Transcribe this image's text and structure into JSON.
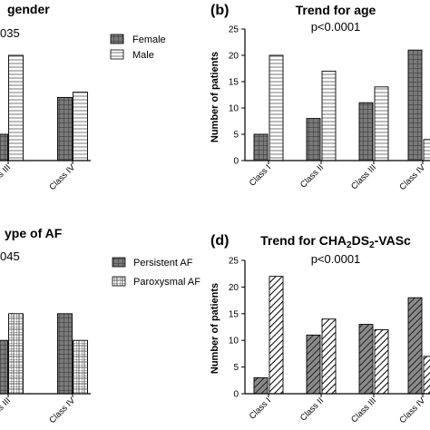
{
  "chart_data": [
    {
      "type": "bar",
      "panel_letter": "",
      "title": "gender",
      "pvalue": "035",
      "categories": [
        "lass III",
        "Class IV"
      ],
      "series": [
        {
          "name": "Female",
          "values": [
            5,
            12
          ],
          "pattern": "grid"
        },
        {
          "name": "Male",
          "values": [
            20,
            13
          ],
          "pattern": "hlines"
        }
      ],
      "legend_position": "top-right",
      "ylabel": "",
      "ylim": [
        0,
        25
      ]
    },
    {
      "type": "bar",
      "panel_letter": "(b)",
      "title": "Trend for age",
      "pvalue": "p<0.0001",
      "categories": [
        "Class I",
        "Class II",
        "Class III",
        "Class IV"
      ],
      "series": [
        {
          "values": [
            5,
            8,
            11,
            21
          ],
          "pattern": "grid"
        },
        {
          "values": [
            20,
            17,
            14,
            4
          ],
          "pattern": "hlines"
        }
      ],
      "ylabel": "Number of patients",
      "ylim": [
        0,
        25
      ],
      "yticks": [
        0,
        5,
        10,
        15,
        20,
        25
      ]
    },
    {
      "type": "bar",
      "panel_letter": "",
      "title": "ype of AF",
      "pvalue": "045",
      "categories": [
        "lass III",
        "Class IV"
      ],
      "series": [
        {
          "name": "Persistent AF",
          "values": [
            10,
            15
          ],
          "pattern": "grid"
        },
        {
          "name": "Paroxysmal AF",
          "values": [
            15,
            10
          ],
          "pattern": "checker"
        }
      ],
      "legend_position": "top-right",
      "ylabel": "",
      "ylim": [
        0,
        25
      ]
    },
    {
      "type": "bar",
      "panel_letter": "(d)",
      "title": "Trend for CHA",
      "title_parts": [
        "Trend for CHA",
        "2",
        "DS",
        "2",
        "-VASc"
      ],
      "pvalue": "p<0.0001",
      "categories": [
        "Class I",
        "Class II",
        "Class III",
        "Class IV"
      ],
      "series": [
        {
          "values": [
            3,
            11,
            13,
            18
          ],
          "pattern": "diagonal-dark"
        },
        {
          "values": [
            22,
            14,
            12,
            7
          ],
          "pattern": "diagonal-light"
        }
      ],
      "ylabel": "Number of patients",
      "ylim": [
        0,
        25
      ],
      "yticks": [
        0,
        5,
        10,
        15,
        20,
        25
      ]
    }
  ],
  "colors": {
    "dark_fill": "#7a7a7a",
    "light_fill": "#ffffff",
    "stroke": "#000000"
  }
}
